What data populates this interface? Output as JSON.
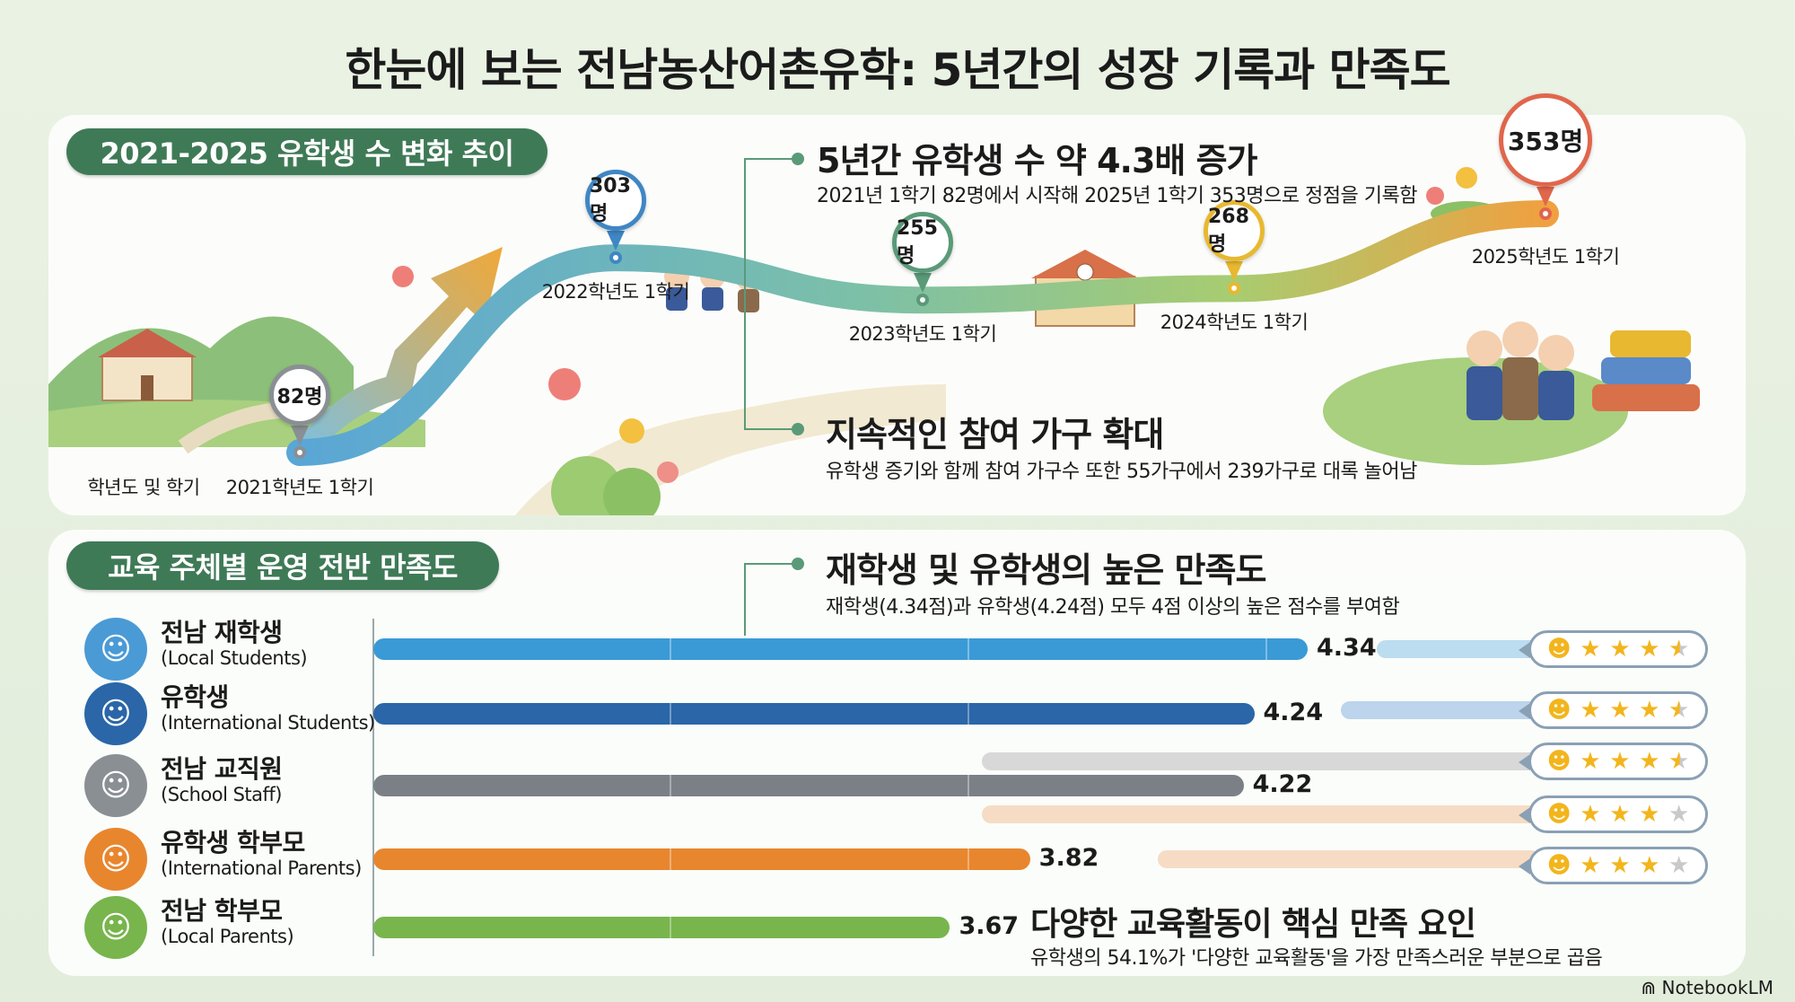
{
  "title": "한눈에 보는 전남농산어촌유학: 5년간의 성장 기록과 만족도",
  "brand": "NotebookLM",
  "growth_section": {
    "pill": "2021-2025 유학생 수 변화 추이",
    "axis_label": "학년도 및 학기",
    "callout1": {
      "title": "5년간 유학생 수 약 4.3배 증가",
      "sub": "2021년 1학기 82명에서 시작해 2025년 1학기 353명으로 정점을 기록함"
    },
    "callout2": {
      "title": "지속적인 참여 가구 확대",
      "sub": "유학생 증기와 함께 참여 가구수 또한 55가구에서 239가구로 대록 놀어남"
    }
  },
  "satisfaction_section": {
    "pill": "교육 주체별 운영 전반 만족도",
    "callout3": {
      "title": "재학생 및 유학생의 높은 만족도",
      "sub": "재학생(4.34점)과 유학생(4.24점) 모두 4점 이상의 높은 점수를 부여함"
    },
    "callout4": {
      "title": "다양한 교육활동이 핵심 만족 요인",
      "sub": "유학생의 54.1%가 '다양한 교육활동'을 가장 만족스러운 부분으로 곱음"
    }
  },
  "colors": {
    "accent": "#3f7a57",
    "line_start": "#5aa6d6",
    "line_end": "#f0a040"
  },
  "chart_data": [
    {
      "type": "line",
      "title": "2021-2025 유학생 수 변화 추이",
      "xlabel": "학년도 및 학기",
      "ylabel": "",
      "categories": [
        "2021학년도 1학기",
        "2022학년도 1학기",
        "2023학년도 1학기",
        "2024학년도 1학기",
        "2025학년도 1학기"
      ],
      "values": [
        82,
        303,
        255,
        268,
        353
      ],
      "labels": [
        "82명",
        "303명",
        "255명",
        "268명",
        "353명"
      ],
      "unit": "명",
      "pin_colors": [
        "#8a8f94",
        "#3f86c4",
        "#5a9a78",
        "#e8b830",
        "#e0664c"
      ]
    },
    {
      "type": "bar",
      "orientation": "horizontal",
      "title": "교육 주체별 운영 전반 만족도",
      "categories": [
        {
          "name": "전남 재학생",
          "en": "(Local Students)"
        },
        {
          "name": "유학생",
          "en": "(International Students)"
        },
        {
          "name": "전남 교직원",
          "en": "(School Staff)"
        },
        {
          "name": "유학생 학부모",
          "en": "(International Parents)"
        },
        {
          "name": "전남 학부모",
          "en": "(Local Parents)"
        }
      ],
      "values": [
        4.34,
        4.24,
        4.22,
        3.82,
        3.67
      ],
      "value_labels": [
        "4.34",
        "4.24",
        "4.22",
        "3.82",
        "3.67"
      ],
      "colors": [
        "#3a9ad6",
        "#2a66a8",
        "#7b8087",
        "#e8862e",
        "#78b54c"
      ],
      "avatar_colors": [
        "#4a9ad6",
        "#2a66a8",
        "#8a8f94",
        "#e8862e",
        "#78b54c"
      ],
      "star_ratings": [
        3.5,
        3.5,
        3.5,
        3,
        3
      ],
      "xlim": [
        2.59,
        4.5
      ]
    }
  ]
}
